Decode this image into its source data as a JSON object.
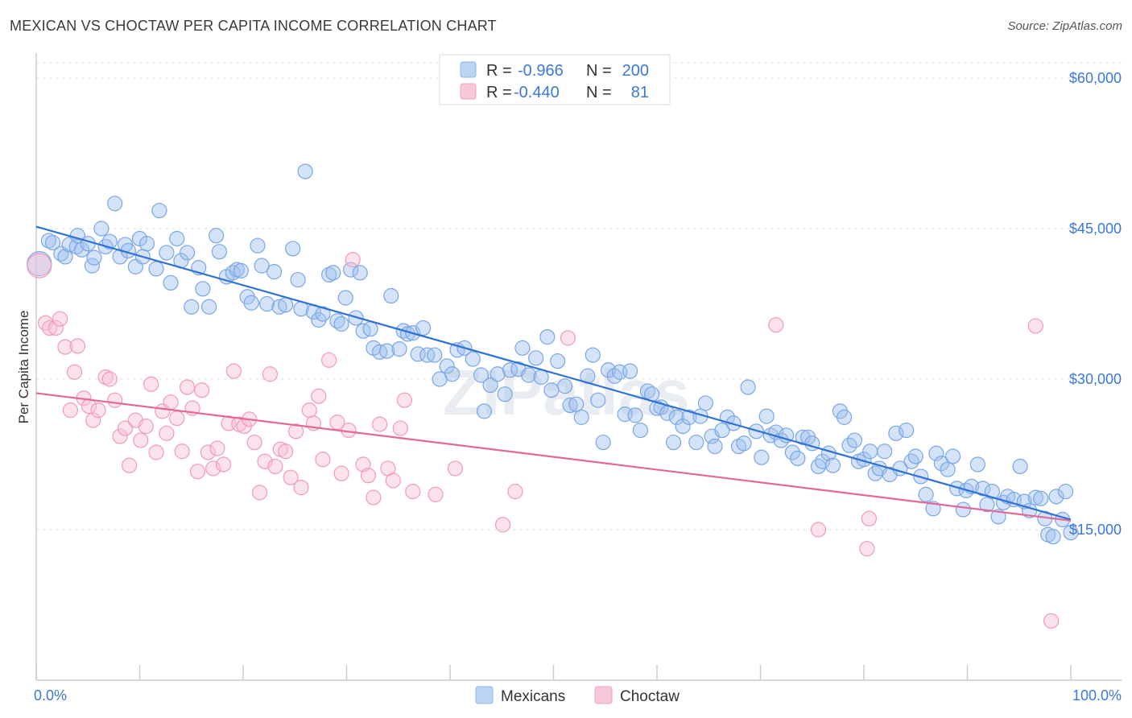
{
  "title": "MEXICAN VS CHOCTAW PER CAPITA INCOME CORRELATION CHART",
  "source": "Source: ZipAtlas.com",
  "watermark": "ZIPatlas",
  "chart_data": {
    "type": "scatter",
    "ylabel": "Per Capita Income",
    "xlabel": "",
    "xlim": [
      0,
      100
    ],
    "ylim": [
      0,
      62000
    ],
    "x_tick_labels": [
      "0.0%",
      "100.0%"
    ],
    "y_ticks": [
      15000,
      30000,
      45000,
      60000
    ],
    "y_tick_labels": [
      "$15,000",
      "$30,000",
      "$45,000",
      "$60,000"
    ],
    "grid": "horizontal dashed",
    "legend_position": "top-center",
    "colors": {
      "Mexicans": "#3b78d8",
      "Choctaw": "#e8709a"
    },
    "stats": [
      {
        "series": "Mexicans",
        "r_label": "R =",
        "r": "-0.966",
        "n_label": "N =",
        "n": "200"
      },
      {
        "series": "Choctaw",
        "r_label": "R =",
        "r": "-0.440",
        "n_label": "N =",
        "n": "81"
      }
    ],
    "series": [
      {
        "name": "Mexicans",
        "trend": {
          "x": [
            0,
            100
          ],
          "y": [
            45200,
            16000
          ]
        },
        "points": [
          [
            0.3,
            41500
          ],
          [
            1.2,
            43800
          ],
          [
            1.6,
            43600
          ],
          [
            2.4,
            42500
          ],
          [
            2.8,
            42200
          ],
          [
            3.2,
            43400
          ],
          [
            3.9,
            43200
          ],
          [
            4.0,
            44300
          ],
          [
            4.4,
            42900
          ],
          [
            5.0,
            43500
          ],
          [
            5.4,
            41300
          ],
          [
            5.6,
            42100
          ],
          [
            6.3,
            45000
          ],
          [
            6.7,
            43200
          ],
          [
            7.1,
            43700
          ],
          [
            7.6,
            47500
          ],
          [
            8.1,
            42200
          ],
          [
            8.6,
            43400
          ],
          [
            8.9,
            42800
          ],
          [
            9.6,
            41200
          ],
          [
            10.0,
            44000
          ],
          [
            10.3,
            42200
          ],
          [
            10.7,
            43500
          ],
          [
            11.6,
            41000
          ],
          [
            11.9,
            46800
          ],
          [
            12.6,
            42600
          ],
          [
            13.0,
            39600
          ],
          [
            13.6,
            44000
          ],
          [
            14.0,
            41800
          ],
          [
            14.6,
            42600
          ],
          [
            15.0,
            37200
          ],
          [
            15.7,
            41100
          ],
          [
            16.1,
            39000
          ],
          [
            16.7,
            37200
          ],
          [
            17.4,
            44300
          ],
          [
            17.7,
            42700
          ],
          [
            18.4,
            40200
          ],
          [
            19.0,
            40600
          ],
          [
            19.4,
            40900
          ],
          [
            19.8,
            40800
          ],
          [
            20.4,
            38200
          ],
          [
            20.8,
            37600
          ],
          [
            21.4,
            43300
          ],
          [
            21.8,
            41300
          ],
          [
            22.3,
            37500
          ],
          [
            23.0,
            40700
          ],
          [
            23.5,
            37200
          ],
          [
            24.1,
            37400
          ],
          [
            24.8,
            43000
          ],
          [
            25.3,
            39900
          ],
          [
            25.6,
            37000
          ],
          [
            26.0,
            50700
          ],
          [
            26.8,
            36700
          ],
          [
            27.3,
            35900
          ],
          [
            27.7,
            36500
          ],
          [
            28.3,
            40400
          ],
          [
            28.7,
            40600
          ],
          [
            29.1,
            35800
          ],
          [
            29.5,
            35500
          ],
          [
            29.9,
            38100
          ],
          [
            30.4,
            40900
          ],
          [
            30.9,
            36100
          ],
          [
            31.3,
            40600
          ],
          [
            31.6,
            34800
          ],
          [
            32.3,
            35000
          ],
          [
            32.6,
            33100
          ],
          [
            33.2,
            32700
          ],
          [
            33.9,
            32800
          ],
          [
            34.3,
            38300
          ],
          [
            35.1,
            33000
          ],
          [
            35.5,
            34800
          ],
          [
            35.9,
            34500
          ],
          [
            36.4,
            34600
          ],
          [
            36.9,
            32500
          ],
          [
            37.4,
            35100
          ],
          [
            37.8,
            32400
          ],
          [
            38.5,
            32400
          ],
          [
            39.0,
            30000
          ],
          [
            39.7,
            31300
          ],
          [
            40.2,
            30500
          ],
          [
            40.7,
            32900
          ],
          [
            41.4,
            33100
          ],
          [
            42.2,
            32000
          ],
          [
            43.0,
            30400
          ],
          [
            43.3,
            26800
          ],
          [
            43.9,
            29400
          ],
          [
            44.6,
            30500
          ],
          [
            45.3,
            28500
          ],
          [
            45.8,
            30900
          ],
          [
            46.6,
            31000
          ],
          [
            47.0,
            33100
          ],
          [
            47.6,
            30400
          ],
          [
            48.3,
            32100
          ],
          [
            48.8,
            30200
          ],
          [
            49.4,
            34200
          ],
          [
            49.8,
            28900
          ],
          [
            50.4,
            31800
          ],
          [
            51.1,
            29300
          ],
          [
            51.6,
            27400
          ],
          [
            52.2,
            27500
          ],
          [
            52.7,
            26200
          ],
          [
            53.3,
            30300
          ],
          [
            53.8,
            32400
          ],
          [
            54.3,
            27900
          ],
          [
            54.8,
            23700
          ],
          [
            55.3,
            30900
          ],
          [
            55.9,
            30300
          ],
          [
            56.4,
            30700
          ],
          [
            56.9,
            26500
          ],
          [
            57.4,
            30800
          ],
          [
            57.9,
            26400
          ],
          [
            58.4,
            24900
          ],
          [
            59.1,
            28800
          ],
          [
            59.5,
            28500
          ],
          [
            60.0,
            27100
          ],
          [
            60.4,
            27200
          ],
          [
            61.0,
            26600
          ],
          [
            61.6,
            23700
          ],
          [
            61.9,
            26200
          ],
          [
            62.5,
            25300
          ],
          [
            63.1,
            26200
          ],
          [
            63.8,
            23700
          ],
          [
            64.2,
            26300
          ],
          [
            64.7,
            27600
          ],
          [
            65.3,
            24300
          ],
          [
            65.6,
            23300
          ],
          [
            66.3,
            24900
          ],
          [
            66.8,
            26200
          ],
          [
            67.4,
            25600
          ],
          [
            67.9,
            23300
          ],
          [
            68.4,
            23600
          ],
          [
            68.8,
            29200
          ],
          [
            69.6,
            24800
          ],
          [
            70.1,
            22200
          ],
          [
            70.6,
            26300
          ],
          [
            71.0,
            24400
          ],
          [
            71.5,
            24700
          ],
          [
            72.0,
            23900
          ],
          [
            72.5,
            24400
          ],
          [
            73.1,
            22700
          ],
          [
            73.6,
            22100
          ],
          [
            74.1,
            24200
          ],
          [
            74.6,
            24200
          ],
          [
            75.0,
            23600
          ],
          [
            75.6,
            21300
          ],
          [
            76.0,
            21800
          ],
          [
            76.6,
            22600
          ],
          [
            77.0,
            21400
          ],
          [
            77.7,
            26800
          ],
          [
            78.1,
            26200
          ],
          [
            78.6,
            23400
          ],
          [
            79.1,
            23900
          ],
          [
            79.5,
            21800
          ],
          [
            80.0,
            22000
          ],
          [
            80.6,
            22800
          ],
          [
            81.1,
            20600
          ],
          [
            81.5,
            21100
          ],
          [
            82.0,
            22800
          ],
          [
            82.5,
            20500
          ],
          [
            83.1,
            24600
          ],
          [
            83.5,
            21100
          ],
          [
            84.1,
            24900
          ],
          [
            84.6,
            21800
          ],
          [
            85.0,
            22300
          ],
          [
            85.5,
            20300
          ],
          [
            86.0,
            18500
          ],
          [
            86.7,
            17100
          ],
          [
            87.0,
            22600
          ],
          [
            87.5,
            21600
          ],
          [
            88.1,
            21000
          ],
          [
            88.6,
            22300
          ],
          [
            89.0,
            19100
          ],
          [
            89.6,
            17000
          ],
          [
            89.9,
            18900
          ],
          [
            90.4,
            19300
          ],
          [
            91.0,
            21500
          ],
          [
            91.5,
            19100
          ],
          [
            91.9,
            17500
          ],
          [
            92.4,
            18800
          ],
          [
            93.0,
            16300
          ],
          [
            93.5,
            17700
          ],
          [
            93.9,
            18300
          ],
          [
            94.5,
            18000
          ],
          [
            95.1,
            21300
          ],
          [
            95.5,
            17800
          ],
          [
            96.0,
            16900
          ],
          [
            96.6,
            18200
          ],
          [
            97.1,
            18100
          ],
          [
            97.5,
            16100
          ],
          [
            97.8,
            14500
          ],
          [
            98.3,
            14300
          ],
          [
            98.6,
            18300
          ],
          [
            99.2,
            16000
          ],
          [
            99.5,
            18800
          ],
          [
            100.0,
            14700
          ]
        ]
      },
      {
        "name": "Choctaw",
        "trend": {
          "x": [
            0,
            100
          ],
          "y": [
            28600,
            15900
          ]
        },
        "points": [
          [
            0.3,
            41300
          ],
          [
            0.9,
            35600
          ],
          [
            1.3,
            35100
          ],
          [
            1.9,
            35100
          ],
          [
            2.3,
            36000
          ],
          [
            2.8,
            33200
          ],
          [
            3.3,
            26900
          ],
          [
            3.7,
            30700
          ],
          [
            4.0,
            33300
          ],
          [
            4.6,
            28100
          ],
          [
            5.1,
            27300
          ],
          [
            5.5,
            25900
          ],
          [
            6.0,
            26900
          ],
          [
            6.7,
            30200
          ],
          [
            7.1,
            30000
          ],
          [
            7.6,
            27900
          ],
          [
            8.1,
            24300
          ],
          [
            8.6,
            25100
          ],
          [
            9.0,
            21400
          ],
          [
            9.6,
            25900
          ],
          [
            10.1,
            23900
          ],
          [
            10.6,
            25300
          ],
          [
            11.1,
            29500
          ],
          [
            11.6,
            22700
          ],
          [
            12.2,
            26800
          ],
          [
            12.6,
            24600
          ],
          [
            13.0,
            27700
          ],
          [
            13.6,
            26100
          ],
          [
            14.1,
            22800
          ],
          [
            14.6,
            29200
          ],
          [
            15.1,
            27100
          ],
          [
            15.6,
            20800
          ],
          [
            16.0,
            28900
          ],
          [
            16.6,
            22700
          ],
          [
            17.1,
            21100
          ],
          [
            17.5,
            23100
          ],
          [
            18.1,
            21500
          ],
          [
            18.6,
            25600
          ],
          [
            19.1,
            30800
          ],
          [
            19.6,
            25500
          ],
          [
            20.1,
            25300
          ],
          [
            20.6,
            26000
          ],
          [
            21.1,
            23700
          ],
          [
            21.6,
            18700
          ],
          [
            22.1,
            21800
          ],
          [
            22.6,
            30500
          ],
          [
            23.1,
            21300
          ],
          [
            23.6,
            23000
          ],
          [
            24.1,
            22800
          ],
          [
            24.6,
            20200
          ],
          [
            25.1,
            24800
          ],
          [
            25.6,
            19200
          ],
          [
            26.4,
            26900
          ],
          [
            26.8,
            25600
          ],
          [
            27.3,
            28300
          ],
          [
            27.7,
            22000
          ],
          [
            28.3,
            31900
          ],
          [
            29.1,
            25700
          ],
          [
            29.5,
            20600
          ],
          [
            30.2,
            24900
          ],
          [
            30.6,
            41900
          ],
          [
            31.6,
            21500
          ],
          [
            32.1,
            20400
          ],
          [
            32.6,
            18200
          ],
          [
            33.2,
            25500
          ],
          [
            34.0,
            21100
          ],
          [
            34.5,
            19900
          ],
          [
            35.2,
            25100
          ],
          [
            35.6,
            27900
          ],
          [
            36.4,
            18800
          ],
          [
            38.6,
            18500
          ],
          [
            40.5,
            21100
          ],
          [
            45.1,
            15500
          ],
          [
            46.3,
            18800
          ],
          [
            51.4,
            34100
          ],
          [
            71.5,
            35400
          ],
          [
            75.6,
            15000
          ],
          [
            80.5,
            16100
          ],
          [
            80.3,
            13100
          ],
          [
            96.6,
            35300
          ],
          [
            98.1,
            5900
          ]
        ]
      }
    ]
  }
}
